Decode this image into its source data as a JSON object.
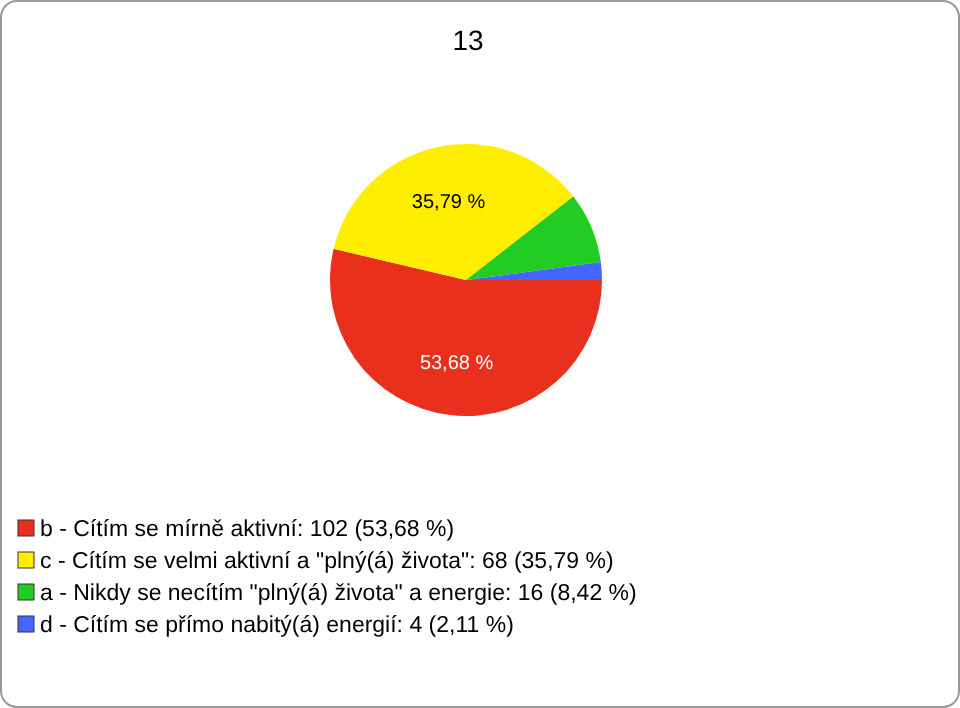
{
  "chart_data": {
    "type": "pie",
    "title": "13",
    "categories": [
      "b - Cítím se mírně aktivní: 102 (53,68 %)",
      "c - Cítím se velmi aktivní a \"plný(á) života\": 68 (35,79 %)",
      "a - Nikdy se necítím \"plný(á) života\" a energie: 16 (8,42 %)",
      "d - Cítím se přímo nabitý(á) energií: 4 (2,11 %)"
    ],
    "values": [
      53.68,
      35.79,
      8.42,
      2.11
    ],
    "colors": [
      "#e8301c",
      "#ffee00",
      "#22cc22",
      "#4466ff"
    ],
    "value_labels": [
      "53,68 %",
      "35,79 %",
      null,
      null
    ],
    "legend": "bottom left"
  }
}
